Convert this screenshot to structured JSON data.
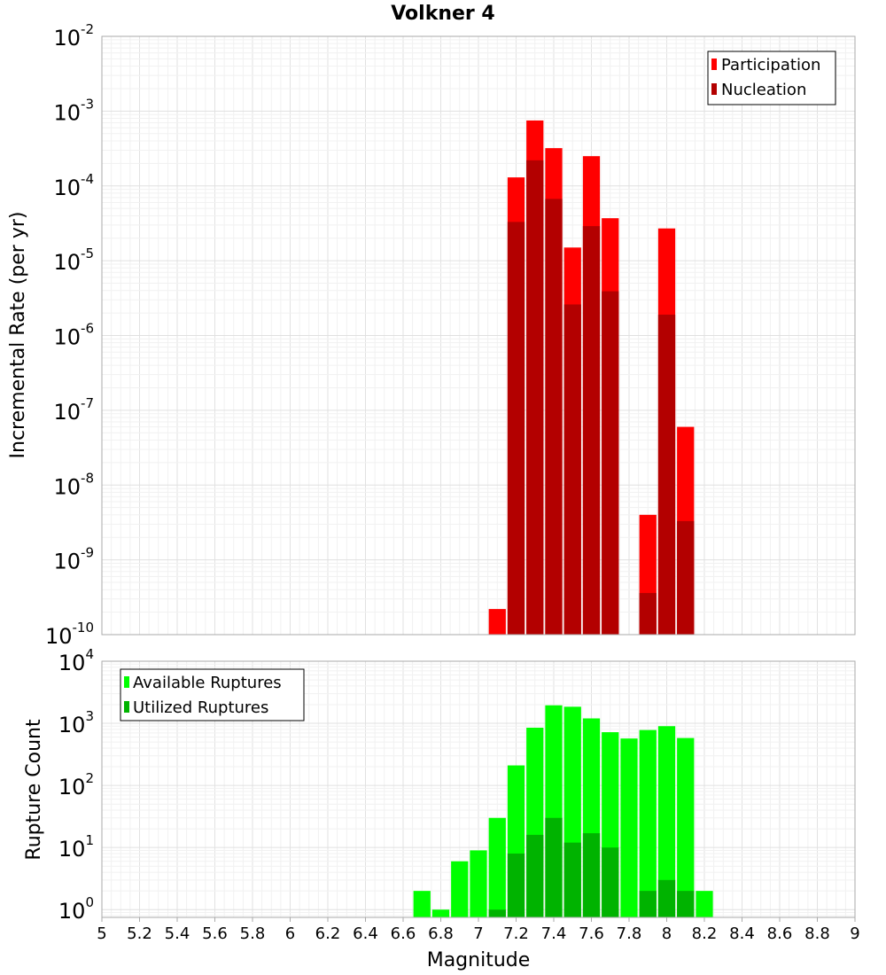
{
  "chart_data": [
    {
      "type": "bar",
      "title": "Volkner 4",
      "ylabel": "Incremental Rate (per yr)",
      "xlabel": "",
      "yscale": "log",
      "ylim": [
        1e-10,
        0.01
      ],
      "xlim": [
        5,
        9
      ],
      "ytick_exponents": [
        -10,
        -9,
        -8,
        -7,
        -6,
        -5,
        -4,
        -3,
        -2
      ],
      "bar_width": 0.1,
      "legend": "top-right",
      "grid": true,
      "series": [
        {
          "name": "Participation",
          "color": "#ff0000",
          "x": [
            7.1,
            7.2,
            7.3,
            7.4,
            7.5,
            7.6,
            7.7,
            7.9,
            8.0,
            8.1
          ],
          "values": [
            2.2e-10,
            0.00013,
            0.00075,
            0.00032,
            1.5e-05,
            0.00025,
            3.7e-05,
            4e-09,
            2.7e-05,
            6e-08
          ]
        },
        {
          "name": "Nucleation",
          "color": "#b30000",
          "x": [
            7.2,
            7.3,
            7.4,
            7.5,
            7.6,
            7.7,
            7.9,
            8.0,
            8.1
          ],
          "values": [
            3.3e-05,
            0.00022,
            6.7e-05,
            2.6e-06,
            2.9e-05,
            3.9e-06,
            3.6e-10,
            1.9e-06,
            3.3e-09
          ]
        }
      ]
    },
    {
      "type": "bar",
      "title": "",
      "ylabel": "Rupture Count",
      "xlabel": "Magnitude",
      "yscale": "log",
      "ylim": [
        0.75,
        10000
      ],
      "xlim": [
        5,
        9
      ],
      "ytick_exponents": [
        0,
        1,
        2,
        3,
        4
      ],
      "xticks": [
        "5",
        "5.2",
        "5.4",
        "5.6",
        "5.8",
        "6",
        "6.2",
        "6.4",
        "6.6",
        "6.8",
        "7",
        "7.2",
        "7.4",
        "7.6",
        "7.8",
        "8",
        "8.2",
        "8.4",
        "8.6",
        "8.8",
        "9"
      ],
      "bar_width": 0.1,
      "legend": "top-left",
      "grid": true,
      "series": [
        {
          "name": "Available Ruptures",
          "color": "#00ff00",
          "x": [
            6.7,
            6.8,
            6.9,
            7.0,
            7.1,
            7.2,
            7.3,
            7.4,
            7.5,
            7.6,
            7.7,
            7.8,
            7.9,
            8.0,
            8.1,
            8.2
          ],
          "values": [
            2,
            1,
            6,
            9,
            30,
            210,
            850,
            1950,
            1850,
            1200,
            720,
            570,
            780,
            900,
            580,
            2
          ]
        },
        {
          "name": "Utilized Ruptures",
          "color": "#00b300",
          "x": [
            7.1,
            7.2,
            7.3,
            7.4,
            7.5,
            7.6,
            7.7,
            7.9,
            8.0,
            8.1
          ],
          "values": [
            1,
            8,
            16,
            30,
            12,
            17,
            10,
            2,
            3,
            2
          ]
        }
      ]
    }
  ]
}
